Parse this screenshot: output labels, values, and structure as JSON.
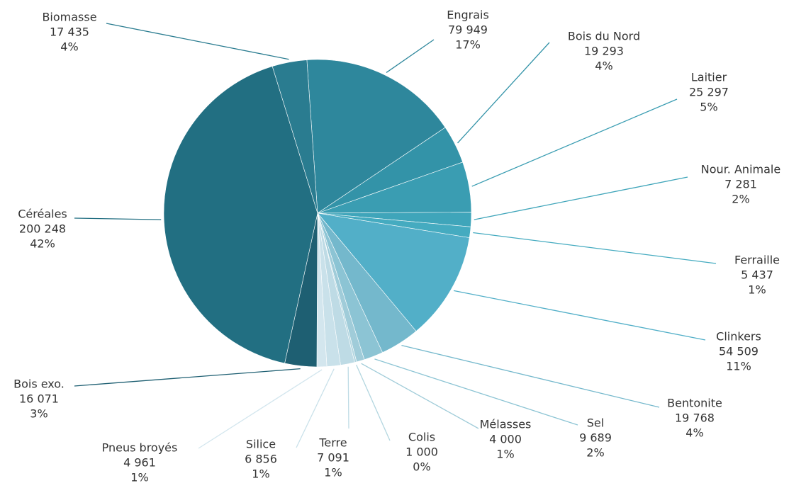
{
  "chart_data": {
    "type": "pie",
    "categories": [
      "Engrais",
      "Bois du Nord",
      "Laitier",
      "Nour. Animale",
      "Ferraille",
      "Clinkers",
      "Bentonite",
      "Sel",
      "Mélasses",
      "Colis",
      "Terre",
      "Silice",
      "Pneus broyés",
      "Bois exo.",
      "Céréales",
      "Biomasse"
    ],
    "values": [
      79949,
      19293,
      25297,
      7281,
      5437,
      54509,
      19768,
      9689,
      4000,
      1000,
      7091,
      6856,
      4961,
      16071,
      200248,
      17435
    ],
    "value_labels": [
      "79 949",
      "19 293",
      "25 297",
      "7 281",
      "5 437",
      "54 509",
      "19 768",
      "9 689",
      "4 000",
      "1 000",
      "7 091",
      "6 856",
      "4 961",
      "16 071",
      "200 248",
      "17 435"
    ],
    "percentages": [
      17,
      4,
      5,
      2,
      1,
      11,
      4,
      2,
      1,
      0,
      1,
      1,
      1,
      3,
      42,
      4
    ],
    "percentage_labels": [
      "17%",
      "4%",
      "5%",
      "2%",
      "1%",
      "11%",
      "4%",
      "2%",
      "1%",
      "0%",
      "1%",
      "1%",
      "1%",
      "3%",
      "42%",
      "4%"
    ],
    "colors": [
      "#2e879c",
      "#3393a8",
      "#3a9db2",
      "#3fa5ba",
      "#45abc0",
      "#52afc8",
      "#74b8cc",
      "#8cc4d4",
      "#a0ccd9",
      "#b3d6e0",
      "#bedbe5",
      "#c9e1ea",
      "#d3e6ee",
      "#1e5f72",
      "#226f82",
      "#2a7c90"
    ]
  }
}
